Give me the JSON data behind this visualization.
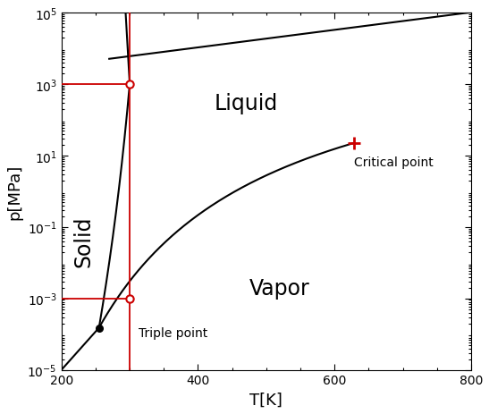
{
  "xlabel": "T[K]",
  "ylabel": "p[MPa]",
  "xlim": [
    200,
    800
  ],
  "ylim_log_min": -5,
  "ylim_log_max": 5,
  "triple_point": {
    "T": 255,
    "p": 0.00015
  },
  "upper_red_circle": {
    "T": 300,
    "p": 1000.0
  },
  "lower_red_circle": {
    "T": 300,
    "p": 0.001
  },
  "critical_point": {
    "T": 628,
    "p": 22
  },
  "red_vline_T": 300,
  "red_hline_upper_p": 1000.0,
  "red_hline_lower_p": 0.001,
  "label_solid": {
    "T": 232,
    "p": 0.04,
    "text": "Solid",
    "rotation": 90,
    "fontsize": 17
  },
  "label_liquid": {
    "T": 470,
    "p": 300,
    "text": "Liquid",
    "fontsize": 17
  },
  "label_vapor": {
    "T": 520,
    "p": 0.002,
    "text": "Vapor",
    "fontsize": 17
  },
  "label_triple": {
    "T": 313,
    "p": 0.00011,
    "text": "Triple point",
    "fontsize": 10
  },
  "label_critical": {
    "T": 628,
    "p": 10,
    "text": "Critical point",
    "fontsize": 10
  },
  "line_color": "#000000",
  "red_color": "#cc0000",
  "background": "#ffffff",
  "fontsize_axis_labels": 13,
  "tick_labelsize": 10
}
